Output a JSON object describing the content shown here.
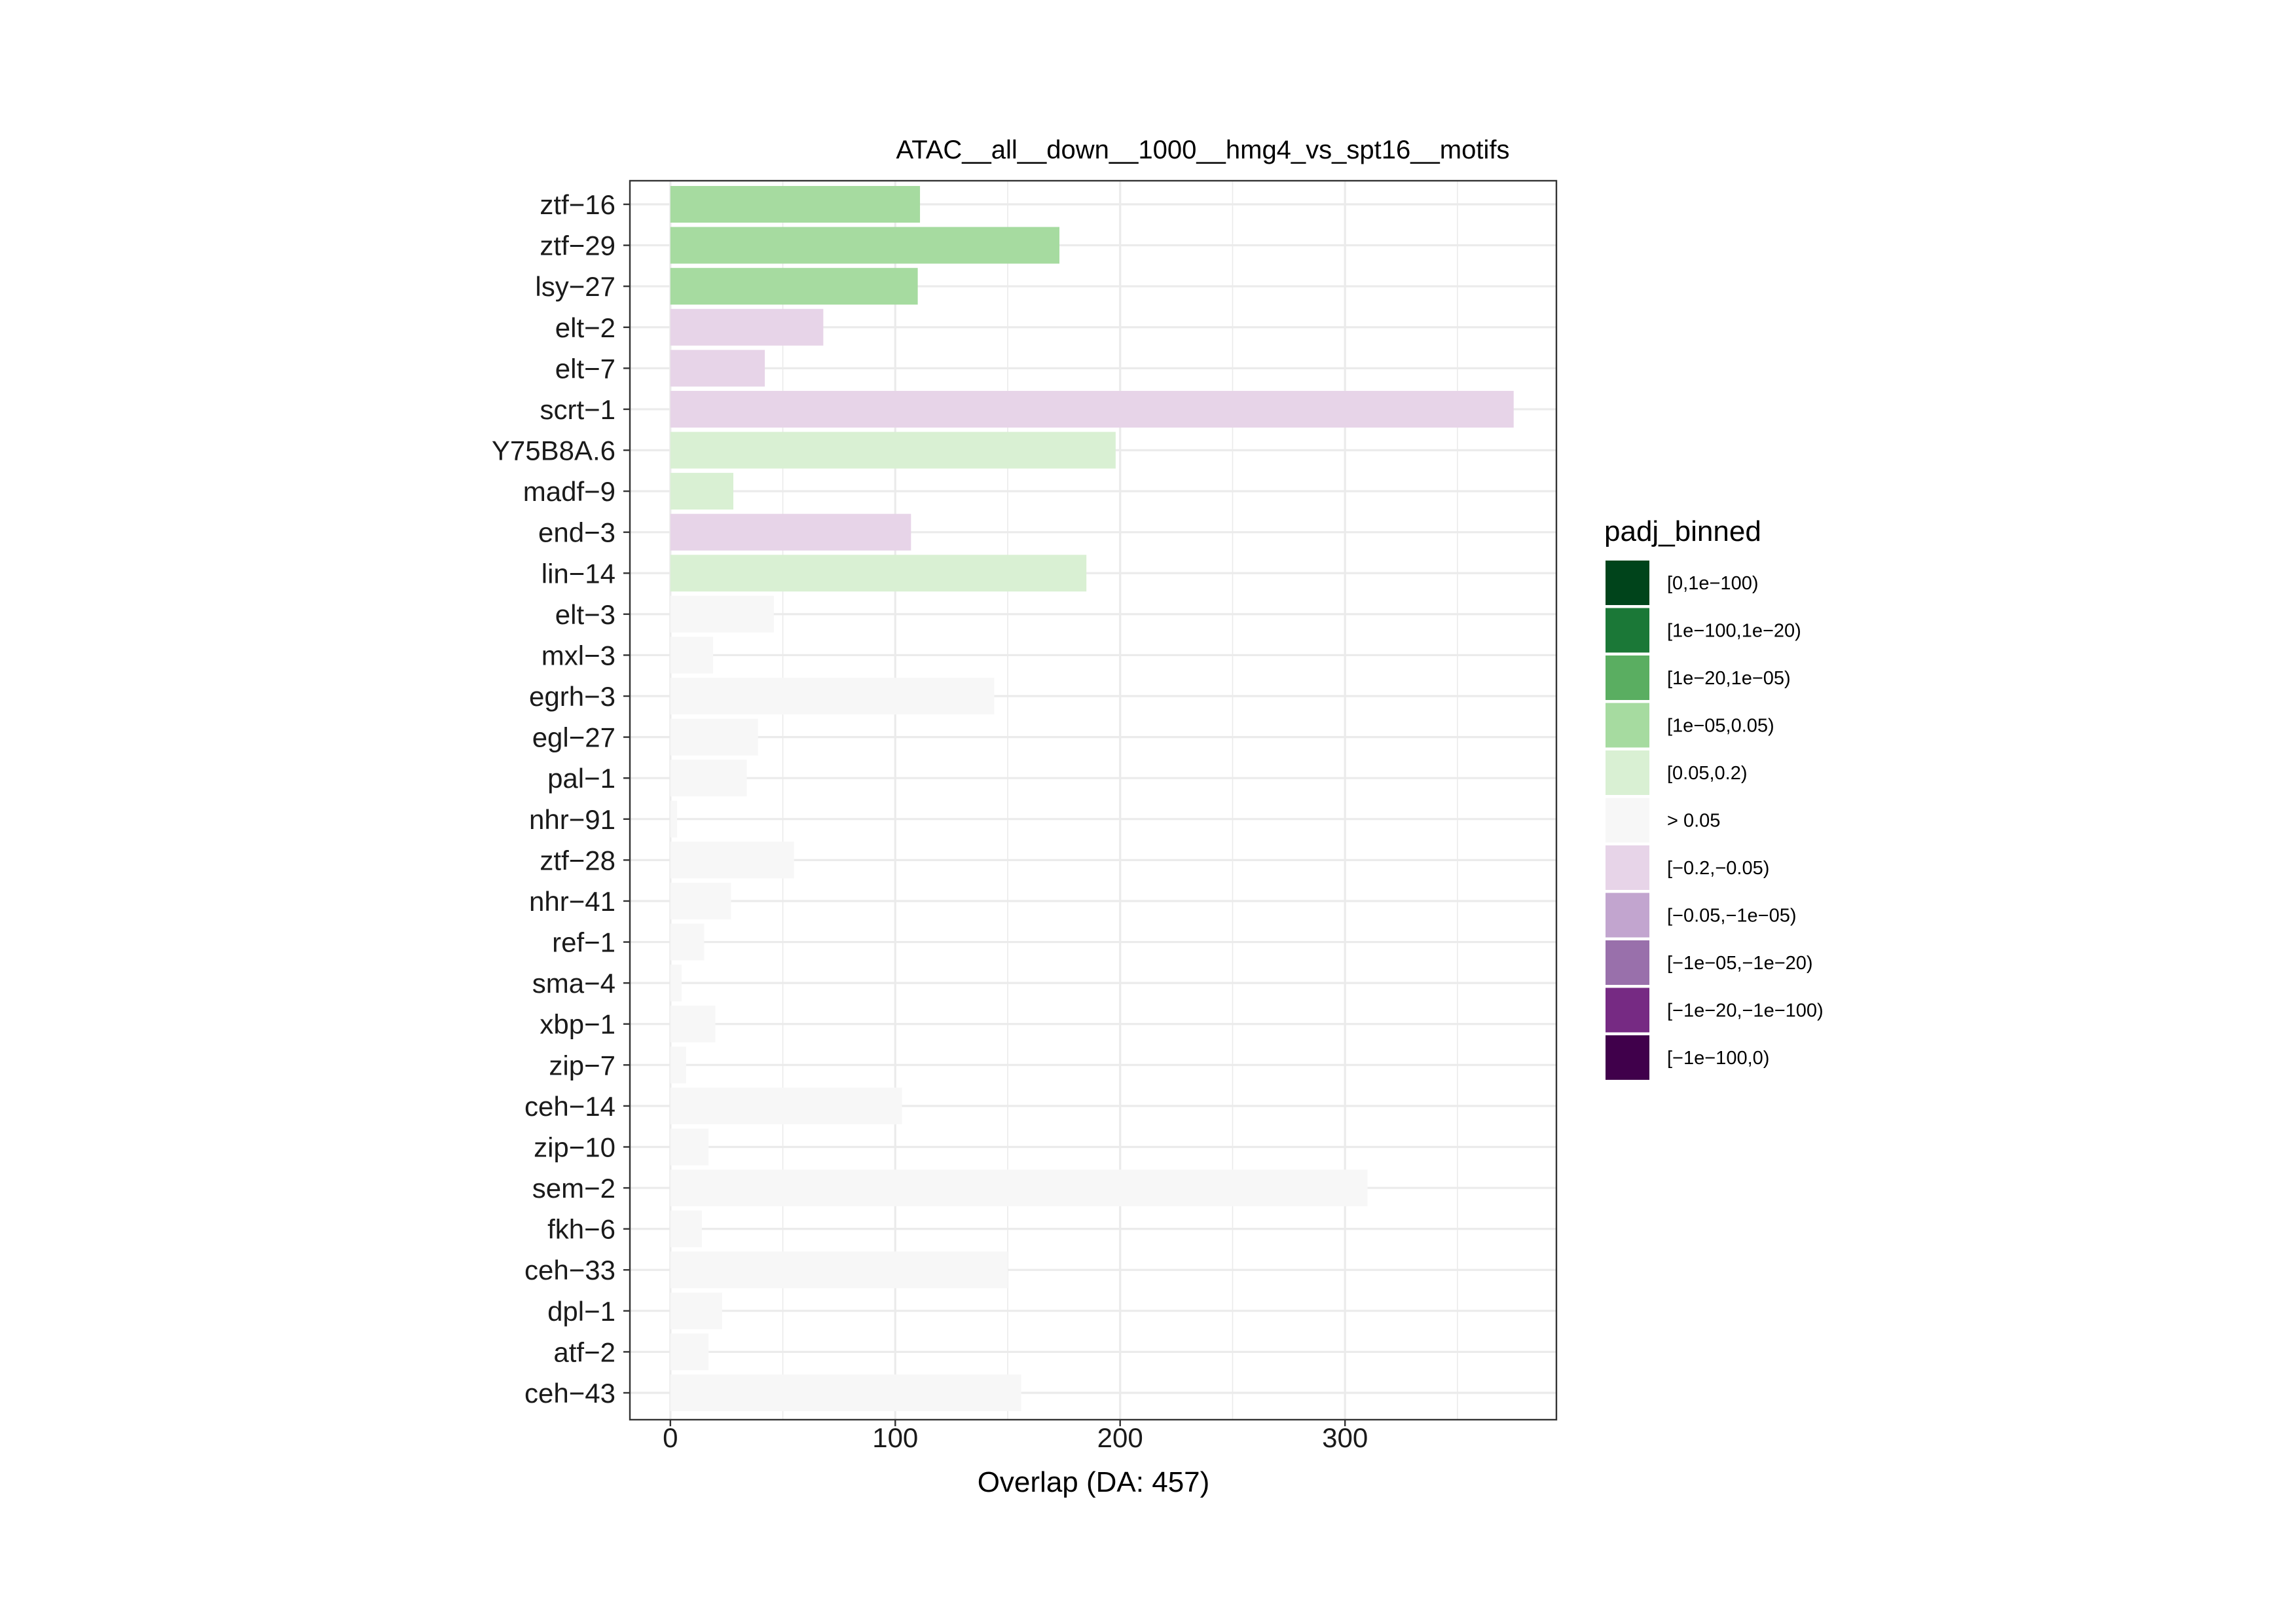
{
  "chart_data": {
    "type": "bar",
    "orientation": "horizontal",
    "title": "ATAC__all__down__1000__hmg4_vs_spt16__motifs",
    "xlabel": "Overlap (DA: 457)",
    "ylabel": "",
    "xlim": [
      -18,
      394
    ],
    "xticks": [
      0,
      100,
      200,
      300
    ],
    "grid": true,
    "legend_position": "right",
    "legend": {
      "title": "padj_binned",
      "entries": [
        {
          "label": "[0,1e−100)",
          "color": "#00441b"
        },
        {
          "label": "[1e−100,1e−20)",
          "color": "#1b7837"
        },
        {
          "label": "[1e−20,1e−05)",
          "color": "#5aae61"
        },
        {
          "label": "[1e−05,0.05)",
          "color": "#a6dba0"
        },
        {
          "label": "[0.05,0.2)",
          "color": "#d9f0d3"
        },
        {
          "label": "> 0.05",
          "color": "#f7f7f7"
        },
        {
          "label": "[−0.2,−0.05)",
          "color": "#e7d4e8"
        },
        {
          "label": "[−0.05,−1e−05)",
          "color": "#c2a5cf"
        },
        {
          "label": "[−1e−05,−1e−20)",
          "color": "#9970ab"
        },
        {
          "label": "[−1e−20,−1e−100)",
          "color": "#762a83"
        },
        {
          "label": "[−1e−100,0)",
          "color": "#40004b"
        }
      ]
    },
    "categories": [
      "ztf−16",
      "ztf−29",
      "lsy−27",
      "elt−2",
      "elt−7",
      "scrt−1",
      "Y75B8A.6",
      "madf−9",
      "end−3",
      "lin−14",
      "elt−3",
      "mxl−3",
      "egrh−3",
      "egl−27",
      "pal−1",
      "nhr−91",
      "ztf−28",
      "nhr−41",
      "ref−1",
      "sma−4",
      "xbp−1",
      "zip−7",
      "ceh−14",
      "zip−10",
      "sem−2",
      "fkh−6",
      "ceh−33",
      "dpl−1",
      "atf−2",
      "ceh−43"
    ],
    "values": [
      111,
      173,
      110,
      68,
      42,
      375,
      198,
      28,
      107,
      185,
      46,
      19,
      144,
      39,
      34,
      3,
      55,
      27,
      15,
      5,
      20,
      7,
      103,
      17,
      310,
      14,
      150,
      23,
      17,
      156
    ],
    "bins": [
      "[1e−05,0.05)",
      "[1e−05,0.05)",
      "[1e−05,0.05)",
      "[−0.2,−0.05)",
      "[−0.2,−0.05)",
      "[−0.2,−0.05)",
      "[0.05,0.2)",
      "[0.05,0.2)",
      "[−0.2,−0.05)",
      "[0.05,0.2)",
      "> 0.05",
      "> 0.05",
      "> 0.05",
      "> 0.05",
      "> 0.05",
      "> 0.05",
      "> 0.05",
      "> 0.05",
      "> 0.05",
      "> 0.05",
      "> 0.05",
      "> 0.05",
      "> 0.05",
      "> 0.05",
      "> 0.05",
      "> 0.05",
      "> 0.05",
      "> 0.05",
      "> 0.05",
      "> 0.05"
    ]
  }
}
